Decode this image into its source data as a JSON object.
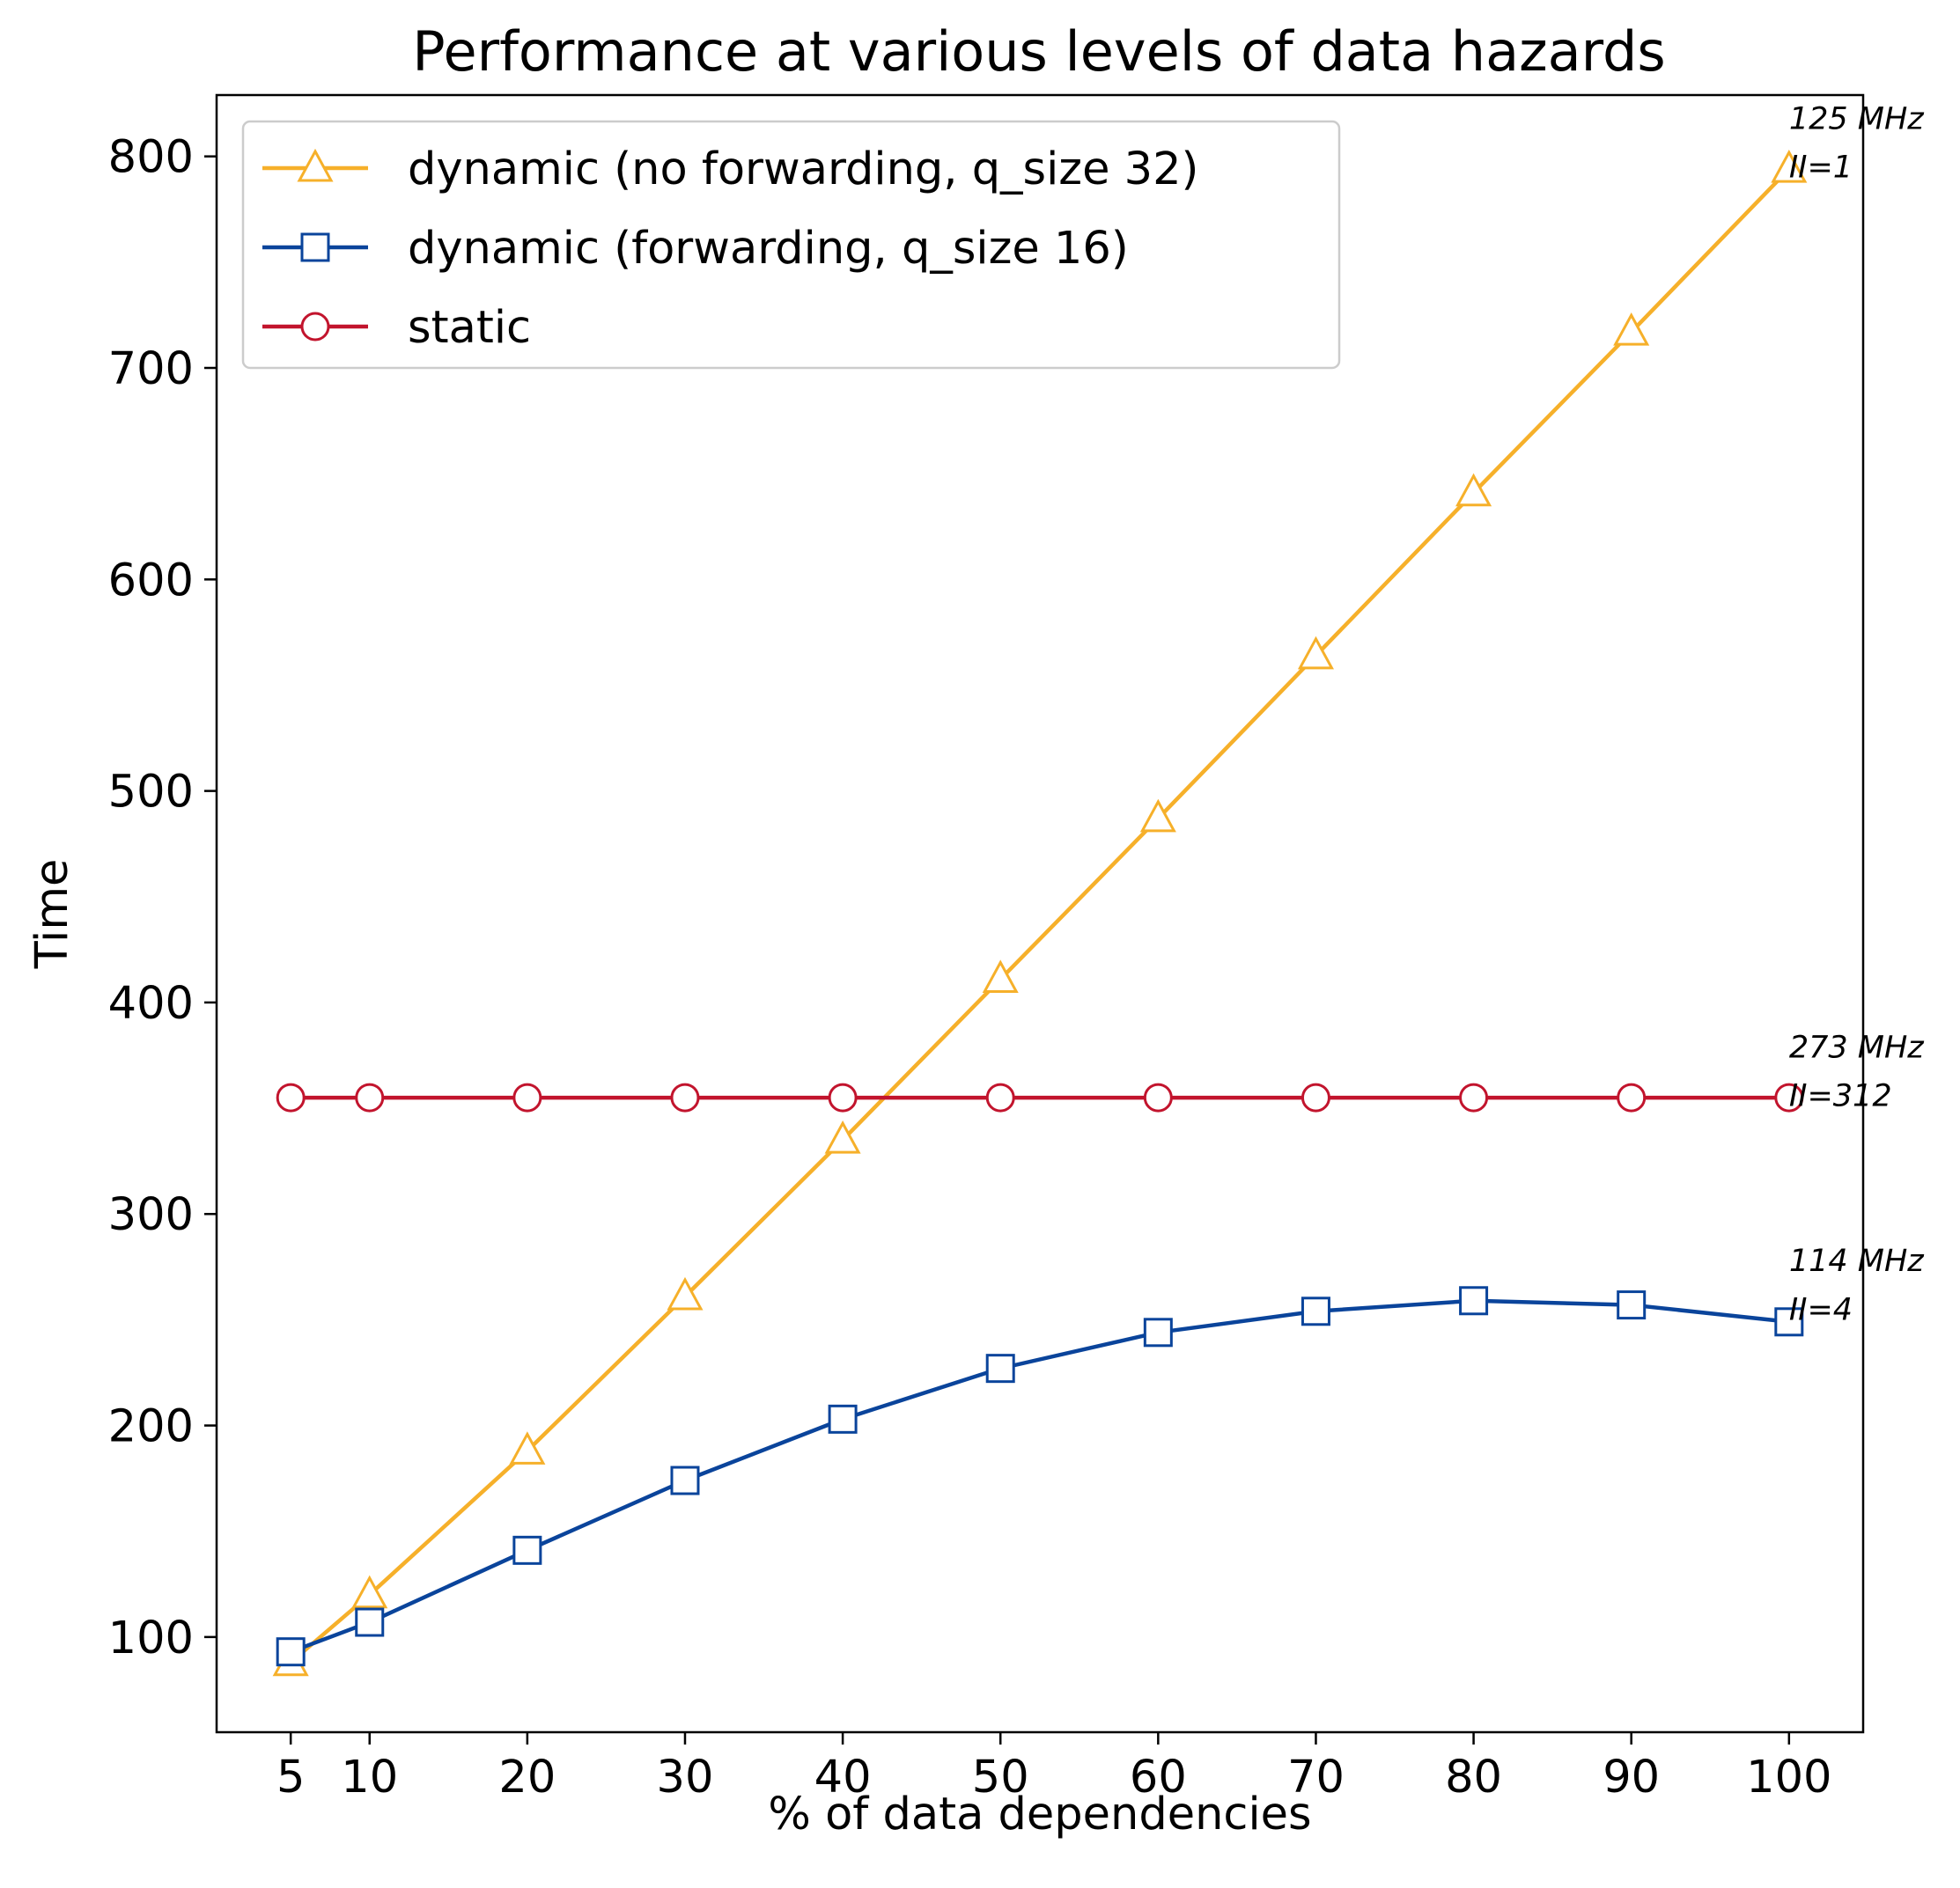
{
  "chart_data": {
    "type": "line",
    "title": "Performance at various levels of data hazards",
    "xlabel": "% of data dependencies",
    "ylabel": "Time",
    "x": [
      5,
      10,
      20,
      30,
      40,
      50,
      60,
      70,
      80,
      90,
      100
    ],
    "xticks": [
      "5",
      "10",
      "20",
      "30",
      "40",
      "50",
      "60",
      "70",
      "80",
      "90",
      "100"
    ],
    "yticks": [
      "100",
      "200",
      "300",
      "400",
      "500",
      "600",
      "700",
      "800"
    ],
    "xlim": [
      0.3,
      104.7
    ],
    "ylim": [
      55,
      829
    ],
    "grid": false,
    "legend_position": "top-left",
    "series": [
      {
        "name": "dynamic (no forwarding, q_size 32)",
        "color": "#f6b02a",
        "marker": "triangle",
        "values": [
          88,
          120,
          188,
          261,
          335,
          411,
          487,
          564,
          641,
          717,
          794
        ],
        "annotation": [
          "125 MHz",
          "II=1"
        ],
        "annotation_y": [
          818,
          795
        ]
      },
      {
        "name": "dynamic (forwarding, q_size 16)",
        "color": "#0a449b",
        "marker": "square",
        "values": [
          93,
          107,
          141,
          174,
          203,
          227,
          244,
          254,
          259,
          257,
          249
        ],
        "annotation": [
          "114 MHz",
          "II=4"
        ],
        "annotation_y": [
          278,
          255
        ]
      },
      {
        "name": "static",
        "color": "#c2142d",
        "marker": "circle",
        "values": [
          355,
          355,
          355,
          355,
          355,
          355,
          355,
          355,
          355,
          355,
          355
        ],
        "annotation": [
          "273 MHz",
          "II=312"
        ],
        "annotation_y": [
          379,
          356
        ]
      }
    ]
  }
}
